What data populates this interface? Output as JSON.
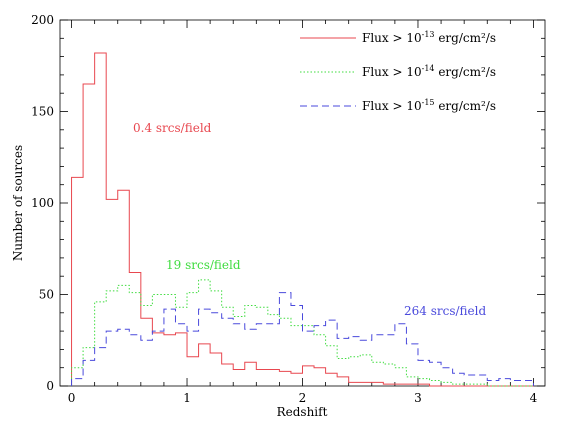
{
  "chart_data": {
    "type": "histogram",
    "xlabel": "Redshift",
    "ylabel": "Number of sources",
    "xlim": [
      -0.1,
      4.1
    ],
    "ylim": [
      0,
      200
    ],
    "x_ticks": [
      0,
      1,
      2,
      3,
      4
    ],
    "y_ticks": [
      0,
      50,
      100,
      150,
      200
    ],
    "bin_width": 0.1,
    "bin_start": 0.0,
    "legend_position": "top-right",
    "series": [
      {
        "legend_base": "Flux > 10",
        "legend_exp": "-13",
        "legend_unit": " erg/cm²/s",
        "annotation": "0.4 srcs/field",
        "color": "#e8474f",
        "dash": "",
        "values": [
          114,
          165,
          182,
          102,
          107,
          62,
          37,
          29,
          28,
          29,
          16,
          23,
          18,
          12,
          9,
          13,
          9,
          9,
          8,
          7,
          11,
          10,
          7,
          5,
          2,
          2,
          2,
          1,
          1,
          1,
          1,
          0,
          0,
          0,
          0,
          0,
          0,
          0,
          0,
          0
        ]
      },
      {
        "legend_base": "Flux > 10",
        "legend_exp": "-14",
        "legend_unit": " erg/cm²/s",
        "annotation": "19 srcs/field",
        "color": "#3fdc3f",
        "dash": "1.5,2",
        "values": [
          10,
          21,
          46,
          52,
          55,
          51,
          44,
          50,
          50,
          43,
          51,
          58,
          52,
          43,
          38,
          44,
          43,
          39,
          37,
          33,
          33,
          28,
          22,
          15,
          16,
          17,
          13,
          12,
          10,
          5,
          4,
          3,
          2,
          1,
          1,
          1,
          0,
          0,
          0,
          0
        ]
      },
      {
        "legend_base": "Flux > 10",
        "legend_exp": "-15",
        "legend_unit": " erg/cm²/s",
        "annotation": "264 srcs/field",
        "color": "#4a4adc",
        "dash": "7,4",
        "values": [
          4,
          14,
          21,
          30,
          31,
          28,
          25,
          30,
          42,
          34,
          30,
          42,
          40,
          37,
          34,
          31,
          34,
          34,
          51,
          44,
          30,
          33,
          36,
          26,
          27,
          25,
          28,
          28,
          34,
          23,
          14,
          13,
          10,
          7,
          6,
          6,
          3,
          4,
          3,
          3
        ]
      }
    ]
  }
}
